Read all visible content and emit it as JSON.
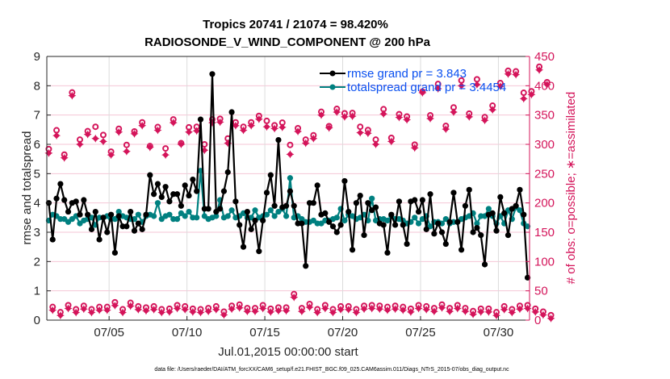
{
  "chart_data": {
    "type": "line",
    "title": [
      "Tropics 20741 / 21074 = 98.420%",
      "RADIOSONDE_V_WIND_COMPONENT @ 200 hPa"
    ],
    "xlabel": "Jul.01,2015 00:00:00 start",
    "ylabel": "rmse and totalspread",
    "ylabel_right": "# of obs: o=possible; ∗=assimilated",
    "footnote": "data file: /Users/raeder/DAI/ATM_forcXX/CAM6_setup/f.e21.FHIST_BGC.f09_025.CAM6assim.011/Diags_NTrS_2015-07/obs_diag_output.nc",
    "x_unit": "days since Jul.01,2015 00:00:00",
    "xlim": [
      0,
      31
    ],
    "ylim": [
      0,
      9
    ],
    "ylim_right": [
      0,
      450
    ],
    "grid": true,
    "legend_position": "top-right",
    "x_ticks": [
      {
        "day": 4,
        "label": "07/05"
      },
      {
        "day": 9,
        "label": "07/10"
      },
      {
        "day": 14,
        "label": "07/15"
      },
      {
        "day": 19,
        "label": "07/20"
      },
      {
        "day": 24,
        "label": "07/25"
      },
      {
        "day": 29,
        "label": "07/30"
      }
    ],
    "y_ticks": [
      "0",
      "1",
      "2",
      "3",
      "4",
      "5",
      "6",
      "7",
      "8",
      "9"
    ],
    "y_ticks_right": [
      "0",
      "50",
      "100",
      "150",
      "200",
      "250",
      "300",
      "350",
      "400",
      "450"
    ],
    "colors": {
      "rmse": "#000000",
      "spread": "#008080",
      "obs": "#d4145a",
      "legend_text": "#0a50f0"
    },
    "x_step_days": 0.25,
    "series": [
      {
        "name": "rmse grand pr = 3.843",
        "key": "rmse",
        "values": [
          4.0,
          2.75,
          4.15,
          4.65,
          4.1,
          3.7,
          4.0,
          4.05,
          3.6,
          4.1,
          3.6,
          3.1,
          3.7,
          2.75,
          3.5,
          3.0,
          3.6,
          2.3,
          3.55,
          3.2,
          3.2,
          3.7,
          3.05,
          3.3,
          3.1,
          3.6,
          4.95,
          4.3,
          4.65,
          4.2,
          4.55,
          4.05,
          4.3,
          4.3,
          3.9,
          4.6,
          4.25,
          4.8,
          4.4,
          6.85,
          3.8,
          3.8,
          8.4,
          3.7,
          3.8,
          4.4,
          5.05,
          7.1,
          4.05,
          3.25,
          2.5,
          3.7,
          3.1,
          3.4,
          2.35,
          3.4,
          4.35,
          4.95,
          3.9,
          6.15,
          3.85,
          3.9,
          4.4,
          3.9,
          3.3,
          3.3,
          1.85,
          4.0,
          4.0,
          4.6,
          3.6,
          3.65,
          3.35,
          3.2,
          3.0,
          3.25,
          4.75,
          3.7,
          2.4,
          4.0,
          4.25,
          2.9,
          4.0,
          3.75,
          3.85,
          3.3,
          3.25,
          2.3,
          3.6,
          3.25,
          4.05,
          3.25,
          2.6,
          4.05,
          4.1,
          3.7,
          4.1,
          3.1,
          4.3,
          2.95,
          3.3,
          3.0,
          2.6,
          3.35,
          4.35,
          3.35,
          2.4,
          3.9,
          4.45,
          3.0,
          3.15,
          2.9,
          1.9,
          3.6,
          3.65,
          3.05,
          4.2,
          3.65,
          2.9,
          3.8,
          3.9,
          4.45,
          3.6,
          1.45
        ]
      },
      {
        "name": "totalspread grand pr = 3.4454",
        "key": "spread",
        "values": [
          3.4,
          3.6,
          3.55,
          3.45,
          3.45,
          3.35,
          3.45,
          3.55,
          3.3,
          3.4,
          3.45,
          3.5,
          3.25,
          3.5,
          3.5,
          3.55,
          3.45,
          3.45,
          3.7,
          3.55,
          3.5,
          3.45,
          3.45,
          3.6,
          3.35,
          3.55,
          3.6,
          3.55,
          4.0,
          3.45,
          3.55,
          3.6,
          3.45,
          3.45,
          3.65,
          3.55,
          3.7,
          3.5,
          3.5,
          5.1,
          3.55,
          3.45,
          3.5,
          3.55,
          4.1,
          3.5,
          3.55,
          3.75,
          3.5,
          3.55,
          3.65,
          3.5,
          3.5,
          3.75,
          3.5,
          3.55,
          3.6,
          3.75,
          3.55,
          3.7,
          3.8,
          3.55,
          4.85,
          3.5,
          3.55,
          3.45,
          3.35,
          3.35,
          3.4,
          3.3,
          3.3,
          3.4,
          3.4,
          3.45,
          3.5,
          3.8,
          3.4,
          3.6,
          3.55,
          3.45,
          3.5,
          3.6,
          3.4,
          4.15,
          3.4,
          3.45,
          3.45,
          3.4,
          3.55,
          3.45,
          3.45,
          3.4,
          3.3,
          3.35,
          3.5,
          3.3,
          3.45,
          3.55,
          3.2,
          3.35,
          3.35,
          3.3,
          3.45,
          3.3,
          3.35,
          3.35,
          3.45,
          3.5,
          3.55,
          3.65,
          3.3,
          3.55,
          3.55,
          3.8,
          3.55,
          3.3,
          3.55,
          3.3,
          3.75,
          3.45,
          3.85,
          3.75,
          3.3,
          3.2
        ]
      },
      {
        "name": "possible",
        "key": "possible",
        "marker": "o",
        "values": [
          292,
          17,
          324,
          8,
          277,
          20,
          383,
          13,
          308,
          19,
          317,
          13,
          330,
          17,
          316,
          17,
          282,
          25,
          321,
          13,
          299,
          24,
          322,
          18,
          332,
          16,
          297,
          18,
          324,
          13,
          293,
          14,
          337,
          20,
          302,
          18,
          329,
          14,
          330,
          13,
          300,
          15,
          337,
          18,
          338,
          9,
          310,
          19,
          332,
          21,
          330,
          15,
          332,
          15,
          343,
          20,
          340,
          14,
          327,
          16,
          337,
          16,
          299,
          39,
          322,
          15,
          308,
          22,
          310,
          13,
          350,
          20,
          331,
          13,
          355,
          18,
          353,
          18,
          348,
          13,
          330,
          19,
          319,
          20,
          308,
          19,
          360,
          17,
          311,
          19,
          346,
          17,
          342,
          14,
          294,
          20,
          390,
          18,
          344,
          15,
          403,
          21,
          326,
          15,
          363,
          20,
          409,
          15,
          347,
          10,
          411,
          14,
          341,
          14,
          366,
          8,
          399,
          18,
          420,
          13,
          419,
          19,
          388,
          20,
          385,
          14,
          427,
          9,
          406,
          3
        ]
      },
      {
        "name": "assimilated",
        "key": "assimilated",
        "marker": "*",
        "values": [
          285,
          17,
          315,
          8,
          277,
          20,
          383,
          13,
          300,
          19,
          317,
          13,
          310,
          17,
          305,
          17,
          282,
          25,
          321,
          13,
          288,
          24,
          318,
          18,
          332,
          16,
          295,
          18,
          324,
          13,
          282,
          14,
          337,
          20,
          300,
          18,
          321,
          14,
          323,
          13,
          290,
          15,
          337,
          18,
          338,
          9,
          302,
          19,
          332,
          21,
          324,
          15,
          332,
          15,
          343,
          20,
          330,
          14,
          327,
          16,
          329,
          16,
          283,
          39,
          322,
          15,
          302,
          22,
          310,
          13,
          350,
          20,
          328,
          13,
          355,
          18,
          347,
          18,
          348,
          13,
          320,
          19,
          319,
          20,
          300,
          19,
          352,
          17,
          305,
          19,
          346,
          17,
          342,
          14,
          294,
          20,
          388,
          18,
          344,
          15,
          395,
          21,
          326,
          15,
          355,
          20,
          400,
          15,
          347,
          10,
          402,
          14,
          341,
          14,
          359,
          8,
          399,
          18,
          420,
          13,
          419,
          19,
          378,
          20,
          385,
          14,
          427,
          9,
          402,
          3
        ]
      }
    ]
  }
}
